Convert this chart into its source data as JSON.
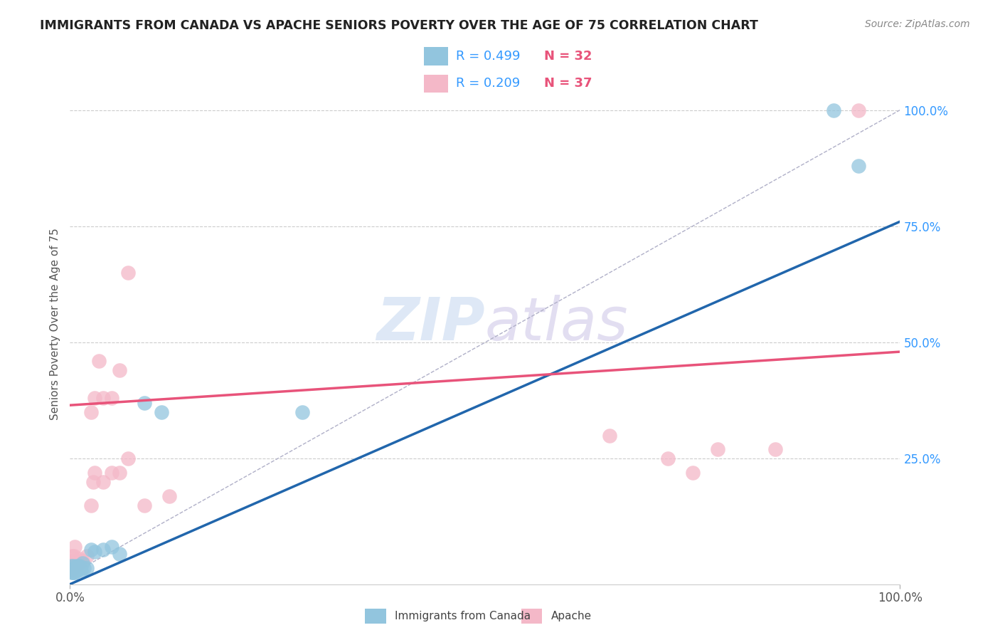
{
  "title": "IMMIGRANTS FROM CANADA VS APACHE SENIORS POVERTY OVER THE AGE OF 75 CORRELATION CHART",
  "source": "Source: ZipAtlas.com",
  "ylabel": "Seniors Poverty Over the Age of 75",
  "xlim": [
    0,
    1.0
  ],
  "ylim": [
    -0.02,
    1.1
  ],
  "x_ticks": [
    0.0,
    1.0
  ],
  "x_tick_labels": [
    "0.0%",
    "100.0%"
  ],
  "y_ticks": [
    0.25,
    0.5,
    0.75,
    1.0
  ],
  "y_tick_labels": [
    "25.0%",
    "50.0%",
    "75.0%",
    "100.0%"
  ],
  "blue_color": "#92c5de",
  "pink_color": "#f4b8c8",
  "blue_line_color": "#2166ac",
  "pink_line_color": "#e8537a",
  "legend_R_color": "#3399ff",
  "legend_N_color": "#e8537a",
  "grid_color": "#cccccc",
  "watermark_color": "#c8daf0",
  "blue_R": "0.499",
  "blue_N": "32",
  "pink_R": "0.209",
  "pink_N": "37",
  "blue_x": [
    0.001,
    0.001,
    0.002,
    0.002,
    0.003,
    0.003,
    0.004,
    0.004,
    0.005,
    0.005,
    0.006,
    0.006,
    0.007,
    0.008,
    0.009,
    0.01,
    0.011,
    0.012,
    0.013,
    0.015,
    0.017,
    0.02,
    0.025,
    0.03,
    0.04,
    0.05,
    0.06,
    0.09,
    0.11,
    0.28,
    0.92,
    0.95
  ],
  "blue_y": [
    0.02,
    0.01,
    0.01,
    0.005,
    0.01,
    0.005,
    0.02,
    0.01,
    0.005,
    0.015,
    0.01,
    0.005,
    0.01,
    0.02,
    0.01,
    0.02,
    0.015,
    0.02,
    0.01,
    0.025,
    0.015,
    0.015,
    0.055,
    0.05,
    0.055,
    0.06,
    0.045,
    0.37,
    0.35,
    0.35,
    1.0,
    0.88
  ],
  "pink_x": [
    0.001,
    0.001,
    0.002,
    0.002,
    0.003,
    0.003,
    0.004,
    0.005,
    0.005,
    0.006,
    0.008,
    0.01,
    0.012,
    0.015,
    0.02,
    0.025,
    0.028,
    0.03,
    0.035,
    0.04,
    0.05,
    0.06,
    0.07,
    0.025,
    0.03,
    0.04,
    0.05,
    0.06,
    0.07,
    0.09,
    0.12,
    0.65,
    0.72,
    0.75,
    0.78,
    0.85,
    0.95
  ],
  "pink_y": [
    0.02,
    0.01,
    0.04,
    0.03,
    0.01,
    0.03,
    0.02,
    0.03,
    0.04,
    0.06,
    0.02,
    0.025,
    0.035,
    0.03,
    0.04,
    0.35,
    0.2,
    0.38,
    0.46,
    0.38,
    0.38,
    0.44,
    0.65,
    0.15,
    0.22,
    0.2,
    0.22,
    0.22,
    0.25,
    0.15,
    0.17,
    0.3,
    0.25,
    0.22,
    0.27,
    0.27,
    1.0
  ],
  "blue_line_y_intercept": -0.02,
  "blue_line_slope": 0.78,
  "pink_line_y_intercept": 0.365,
  "pink_line_slope": 0.115
}
